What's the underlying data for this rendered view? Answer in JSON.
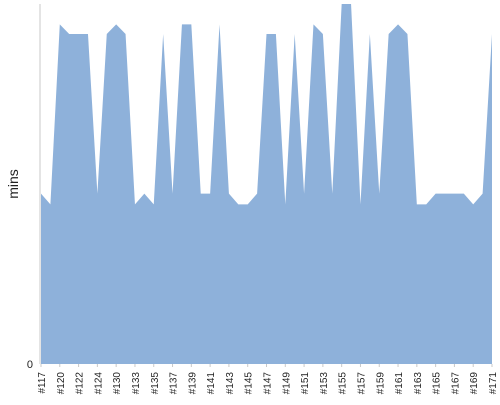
{
  "chart_data": {
    "type": "area",
    "ylabel": "mins",
    "y_tick_labels": [
      "0"
    ],
    "ylim": [
      0,
      30
    ],
    "grid": false,
    "legend": "none",
    "x_tick_labels": [
      "#117",
      "#120",
      "#122",
      "#124",
      "#130",
      "#133",
      "#135",
      "#137",
      "#139",
      "#141",
      "#143",
      "#145",
      "#147",
      "#149",
      "#151",
      "#153",
      "#155",
      "#157",
      "#159",
      "#161",
      "#163",
      "#165",
      "#167",
      "#169",
      "#171"
    ],
    "x": [
      "#117",
      "#118",
      "#120",
      "#121",
      "#122",
      "#123",
      "#124",
      "#129",
      "#130",
      "#131",
      "#133",
      "#134",
      "#135",
      "#136",
      "#137",
      "#138",
      "#139",
      "#140",
      "#141",
      "#142",
      "#143",
      "#144",
      "#145",
      "#146",
      "#147",
      "#148",
      "#149",
      "#150",
      "#151",
      "#152",
      "#153",
      "#154",
      "#155",
      "#156",
      "#157",
      "#158",
      "#159",
      "#160",
      "#161",
      "#162",
      "#163",
      "#164",
      "#165",
      "#166",
      "#167",
      "#168",
      "#169",
      "#170",
      "#171"
    ],
    "series": [
      {
        "values": [
          14.2,
          13.3,
          28.3,
          27.5,
          27.5,
          27.5,
          14.2,
          27.5,
          28.3,
          27.5,
          13.3,
          14.2,
          13.3,
          27.5,
          14.2,
          28.3,
          28.3,
          14.2,
          14.2,
          28.3,
          14.2,
          13.3,
          13.3,
          14.2,
          27.5,
          27.5,
          13.3,
          27.5,
          14.2,
          28.3,
          27.5,
          14.2,
          30.0,
          30.0,
          13.3,
          27.5,
          14.2,
          27.5,
          28.3,
          27.5,
          13.3,
          13.3,
          14.2,
          14.2,
          14.2,
          14.2,
          13.3,
          14.2,
          27.5
        ]
      }
    ],
    "colors": {
      "area": "#8eb1da",
      "axis": "#c8c8c8",
      "text": "#222222"
    }
  }
}
